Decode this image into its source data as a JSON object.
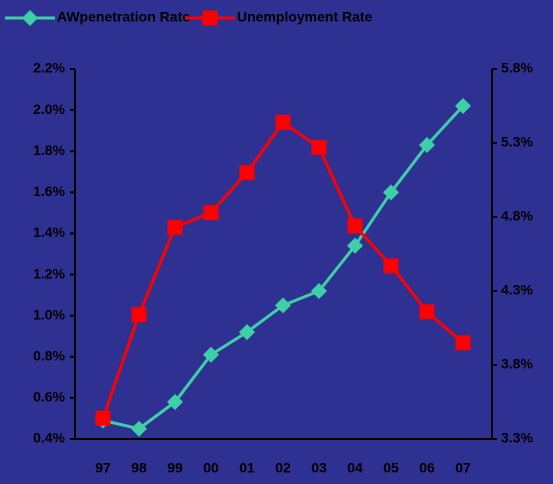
{
  "chart_data": {
    "type": "line",
    "categories": [
      "97",
      "98",
      "99",
      "00",
      "01",
      "02",
      "03",
      "04",
      "05",
      "06",
      "07"
    ],
    "series": [
      {
        "name": "AWpenetration Rate",
        "color": "#3ecfa6",
        "marker": "diamond",
        "values": [
          0.49,
          0.45,
          0.58,
          0.81,
          0.92,
          1.05,
          1.12,
          1.34,
          1.6,
          1.83,
          2.02
        ]
      },
      {
        "name": "Unemployment Rate",
        "color": "#ff0000",
        "marker": "square",
        "axis": "y2",
        "values": [
          3.44,
          4.14,
          4.73,
          4.83,
          5.1,
          5.44,
          5.27,
          4.74,
          4.47,
          4.16,
          3.95
        ]
      }
    ],
    "ylim": [
      0.4,
      2.2
    ],
    "yticks": [
      {
        "value": 0.4,
        "label": "0.4%"
      },
      {
        "value": 0.6,
        "label": "0.6%"
      },
      {
        "value": 0.8,
        "label": "0.8%"
      },
      {
        "value": 1.0,
        "label": "1.0%"
      },
      {
        "value": 1.2,
        "label": "1.2%"
      },
      {
        "value": 1.4,
        "label": "1.4%"
      },
      {
        "value": 1.6,
        "label": "1.6%"
      },
      {
        "value": 1.8,
        "label": "1.8%"
      },
      {
        "value": 2.0,
        "label": "2.0%"
      },
      {
        "value": 2.2,
        "label": "2.2%"
      }
    ],
    "y2lim": [
      3.3,
      5.8
    ],
    "y2ticks": [
      {
        "value": 3.3,
        "label": "3.3%"
      },
      {
        "value": 3.8,
        "label": "3.8%"
      },
      {
        "value": 4.3,
        "label": "4.3%"
      },
      {
        "value": 4.8,
        "label": "4.8%"
      },
      {
        "value": 5.3,
        "label": "5.3%"
      },
      {
        "value": 5.8,
        "label": "5.8%"
      }
    ],
    "legend": "top"
  }
}
